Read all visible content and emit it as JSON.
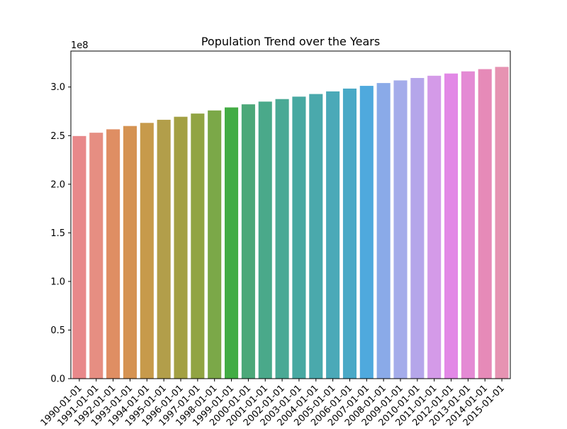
{
  "chart_data": {
    "type": "bar",
    "title": "Population Trend over the Years",
    "xlabel": "",
    "ylabel": "",
    "y_offset_label": "1e8",
    "categories": [
      "1990-01-01",
      "1991-01-01",
      "1992-01-01",
      "1993-01-01",
      "1994-01-01",
      "1995-01-01",
      "1996-01-01",
      "1997-01-01",
      "1998-01-01",
      "1999-01-01",
      "2000-01-01",
      "2001-01-01",
      "2002-01-01",
      "2003-01-01",
      "2004-01-01",
      "2005-01-01",
      "2006-01-01",
      "2007-01-01",
      "2008-01-01",
      "2009-01-01",
      "2010-01-01",
      "2011-01-01",
      "2012-01-01",
      "2013-01-01",
      "2014-01-01",
      "2015-01-01"
    ],
    "values": [
      249600000,
      253000000,
      256500000,
      259900000,
      263100000,
      266300000,
      269400000,
      272700000,
      275900000,
      279000000,
      282200000,
      285000000,
      287600000,
      290100000,
      292800000,
      295500000,
      298400000,
      301200000,
      304100000,
      306800000,
      309300000,
      311600000,
      313900000,
      316100000,
      318400000,
      320700000
    ],
    "colors": [
      "#e8888a",
      "#e68e82",
      "#df8e63",
      "#d59353",
      "#c79a4b",
      "#b29e4a",
      "#a3a043",
      "#91a443",
      "#7ba848",
      "#43ac44",
      "#4ca879",
      "#4aa98a",
      "#4aa995",
      "#48a9a2",
      "#4aa9ac",
      "#4ba9b8",
      "#4aa9c6",
      "#4fa9dd",
      "#8aaae8",
      "#a4acea",
      "#b5a6ea",
      "#d49ae8",
      "#e288e6",
      "#e48ad4",
      "#e68ab8",
      "#e693b2"
    ],
    "yticks": [
      {
        "value": 0,
        "label": "0.0"
      },
      {
        "value": 50000000,
        "label": "0.5"
      },
      {
        "value": 100000000,
        "label": "1.0"
      },
      {
        "value": 150000000,
        "label": "1.5"
      },
      {
        "value": 200000000,
        "label": "2.0"
      },
      {
        "value": 250000000,
        "label": "2.5"
      },
      {
        "value": 300000000,
        "label": "3.0"
      }
    ],
    "ylim": [
      0,
      337000000
    ],
    "grid": false,
    "legend": "none"
  }
}
